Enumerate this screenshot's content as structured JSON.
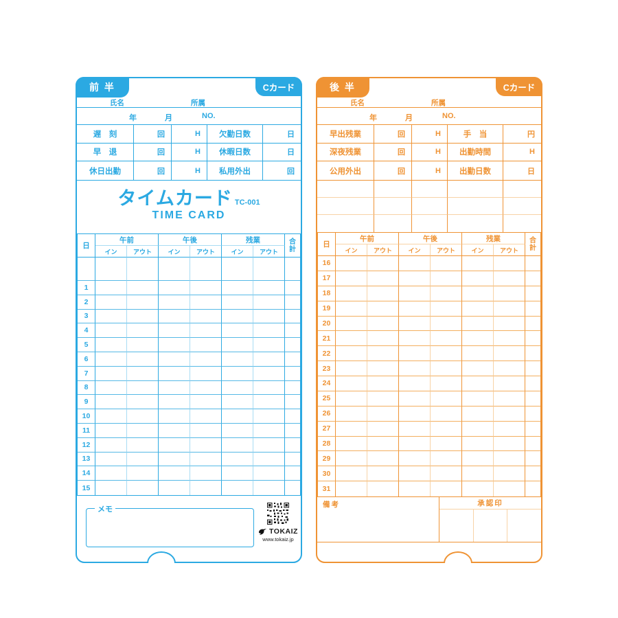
{
  "blue": {
    "colors": {
      "accent": "#2ba9e2",
      "mid": "#55b9e6",
      "light": "#a8dcf4"
    },
    "tab_label": "前 半",
    "badge_label": "Cカード",
    "name_label": "氏名",
    "dept_label": "所属",
    "year_label": "年",
    "month_label": "月",
    "no_label": "NO.",
    "summary": [
      {
        "label": "遅　刻",
        "count_unit": "回",
        "hour_unit": "H",
        "label2": "欠勤日数",
        "unit2": "日"
      },
      {
        "label": "早　退",
        "count_unit": "回",
        "hour_unit": "H",
        "label2": "休暇日数",
        "unit2": "日"
      },
      {
        "label": "休日出勤",
        "count_unit": "回",
        "hour_unit": "H",
        "label2": "私用外出",
        "unit2": "回"
      }
    ],
    "title": "タイムカード",
    "model": "TC-001",
    "subtitle": "TIME CARD",
    "table": {
      "day_header": "日",
      "groups": [
        "午前",
        "午後",
        "残業"
      ],
      "in_label": "イン",
      "out_label": "アウト",
      "total_label": "合計",
      "lead_blank_row": true,
      "days": [
        "1",
        "2",
        "3",
        "4",
        "5",
        "6",
        "7",
        "8",
        "9",
        "10",
        "11",
        "12",
        "13",
        "14",
        "15"
      ]
    },
    "memo_label": "メモ",
    "qr_icon": "qr-code",
    "logo_icon": "bird-logo",
    "brand": "TOKAIZ",
    "url": "www.tokaiz.jp"
  },
  "orange": {
    "colors": {
      "accent": "#ef9334",
      "mid": "#f3ae5e",
      "light": "#f8d3a6"
    },
    "tab_label": "後 半",
    "badge_label": "Cカード",
    "name_label": "氏名",
    "dept_label": "所属",
    "year_label": "年",
    "month_label": "月",
    "no_label": "NO.",
    "summary": [
      {
        "label": "早出残業",
        "count_unit": "回",
        "hour_unit": "H",
        "label2": "手　当",
        "unit2": "円"
      },
      {
        "label": "深夜残業",
        "count_unit": "回",
        "hour_unit": "H",
        "label2": "出勤時間",
        "unit2": "H"
      },
      {
        "label": "公用外出",
        "count_unit": "回",
        "hour_unit": "H",
        "label2": "出勤日数",
        "unit2": "日"
      }
    ],
    "table": {
      "day_header": "日",
      "groups": [
        "午前",
        "午後",
        "残業"
      ],
      "in_label": "イン",
      "out_label": "アウト",
      "total_label": "合計",
      "lead_blank_row": false,
      "days": [
        "16",
        "17",
        "18",
        "19",
        "20",
        "21",
        "22",
        "23",
        "24",
        "25",
        "26",
        "27",
        "28",
        "29",
        "30",
        "31"
      ]
    },
    "remarks_label": "備考",
    "approval_label": "承認印"
  }
}
